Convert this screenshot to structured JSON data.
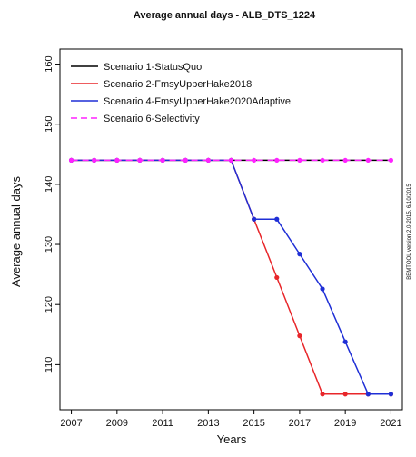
{
  "chart_data": {
    "type": "line",
    "title": "Average annual days -  ALB_DTS_1224",
    "xlabel": "Years",
    "ylabel": "Average annual days",
    "side_note": "BEMTOOL version 2.0-2015, 6/10/2015",
    "xlim": [
      2006.5,
      2021.5
    ],
    "ylim": [
      102.5,
      162.5
    ],
    "x_ticks": [
      2007,
      2009,
      2011,
      2013,
      2015,
      2017,
      2019,
      2021
    ],
    "y_ticks": [
      110,
      120,
      130,
      140,
      150,
      160
    ],
    "x": [
      2007,
      2008,
      2009,
      2010,
      2011,
      2012,
      2013,
      2014,
      2015,
      2016,
      2017,
      2018,
      2019,
      2020,
      2021
    ],
    "grid": false,
    "legend_position": "top-left",
    "series": [
      {
        "name": "Scenario 1-StatusQuo",
        "color": "#000000",
        "dashed": false,
        "markers": false,
        "values": [
          144,
          144,
          144,
          144,
          144,
          144,
          144,
          144,
          144,
          144,
          144,
          144,
          144,
          144,
          144
        ]
      },
      {
        "name": "Scenario 2-FmsyUpperHake2018",
        "color": "#e8262a",
        "dashed": false,
        "markers": true,
        "values": [
          144,
          144,
          144,
          144,
          144,
          144,
          144,
          144,
          134.2,
          124.5,
          114.8,
          105.1,
          105.1,
          105.1,
          105.1
        ]
      },
      {
        "name": "Scenario 4-FmsyUpperHake2020Adaptive",
        "color": "#1f2fd6",
        "dashed": false,
        "markers": true,
        "values": [
          144,
          144,
          144,
          144,
          144,
          144,
          144,
          144,
          134.2,
          134.2,
          128.4,
          122.6,
          113.8,
          105.1,
          105.1
        ]
      },
      {
        "name": "Scenario 6-Selectivity",
        "color": "#ff22ff",
        "dashed": true,
        "markers": true,
        "values": [
          144,
          144,
          144,
          144,
          144,
          144,
          144,
          144,
          144,
          144,
          144,
          144,
          144,
          144,
          144
        ]
      }
    ]
  }
}
